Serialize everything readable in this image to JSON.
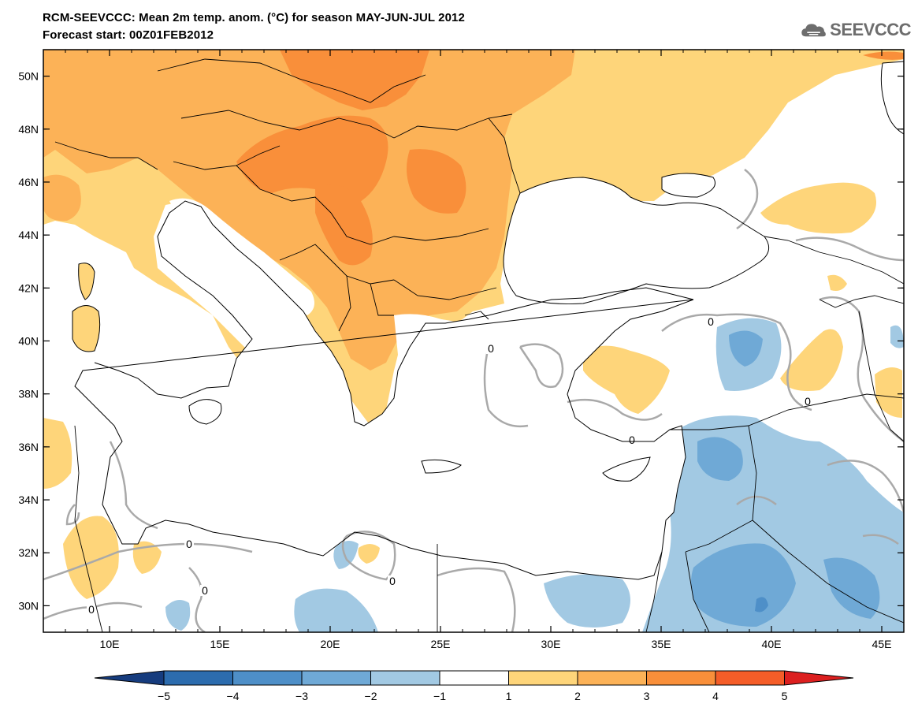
{
  "header": {
    "title": "RCM-SEEVCCC: Mean 2m temp. anom. (°C) for season MAY-JUN-JUL 2012",
    "subtitle": "Forecast start: 00Z01FEB2012",
    "logo_text": "SEEVCCC",
    "logo_icon": "cloud-icon"
  },
  "map": {
    "lon_range": [
      7,
      46
    ],
    "lat_range": [
      29,
      51
    ],
    "lon_ticks": [
      {
        "value": 10,
        "label": "10E"
      },
      {
        "value": 15,
        "label": "15E"
      },
      {
        "value": 20,
        "label": "20E"
      },
      {
        "value": 25,
        "label": "25E"
      },
      {
        "value": 30,
        "label": "30E"
      },
      {
        "value": 35,
        "label": "35E"
      },
      {
        "value": 40,
        "label": "40E"
      },
      {
        "value": 45,
        "label": "45E"
      }
    ],
    "lat_ticks": [
      {
        "value": 30,
        "label": "30N"
      },
      {
        "value": 32,
        "label": "32N"
      },
      {
        "value": 34,
        "label": "34N"
      },
      {
        "value": 36,
        "label": "36N"
      },
      {
        "value": 38,
        "label": "38N"
      },
      {
        "value": 40,
        "label": "40N"
      },
      {
        "value": 42,
        "label": "42N"
      },
      {
        "value": 44,
        "label": "44N"
      },
      {
        "value": 46,
        "label": "46N"
      },
      {
        "value": 48,
        "label": "48N"
      },
      {
        "value": 50,
        "label": "50N"
      }
    ],
    "contour_labels": [
      "0",
      "0",
      "0",
      "0",
      "0",
      "0",
      "0",
      "0"
    ]
  },
  "colorbar": {
    "labels": [
      "−5",
      "−4",
      "−3",
      "−2",
      "−1",
      "1",
      "2",
      "3",
      "4",
      "5"
    ],
    "colors": [
      "#163c7e",
      "#2c6cae",
      "#4e8fc8",
      "#6fa9d6",
      "#a2c9e3",
      "#ffffff",
      "#fed57a",
      "#fcb257",
      "#f98f3a",
      "#f55d28",
      "#dc1f1f"
    ]
  },
  "palette": {
    "pos1": "#fed57a",
    "pos2": "#fcb257",
    "pos3": "#f98f3a",
    "neg1": "#a2c9e3",
    "neg2": "#6fa9d6",
    "neg3": "#4e8fc8",
    "contour": "#a9a9a9",
    "water": "#ffffff"
  }
}
